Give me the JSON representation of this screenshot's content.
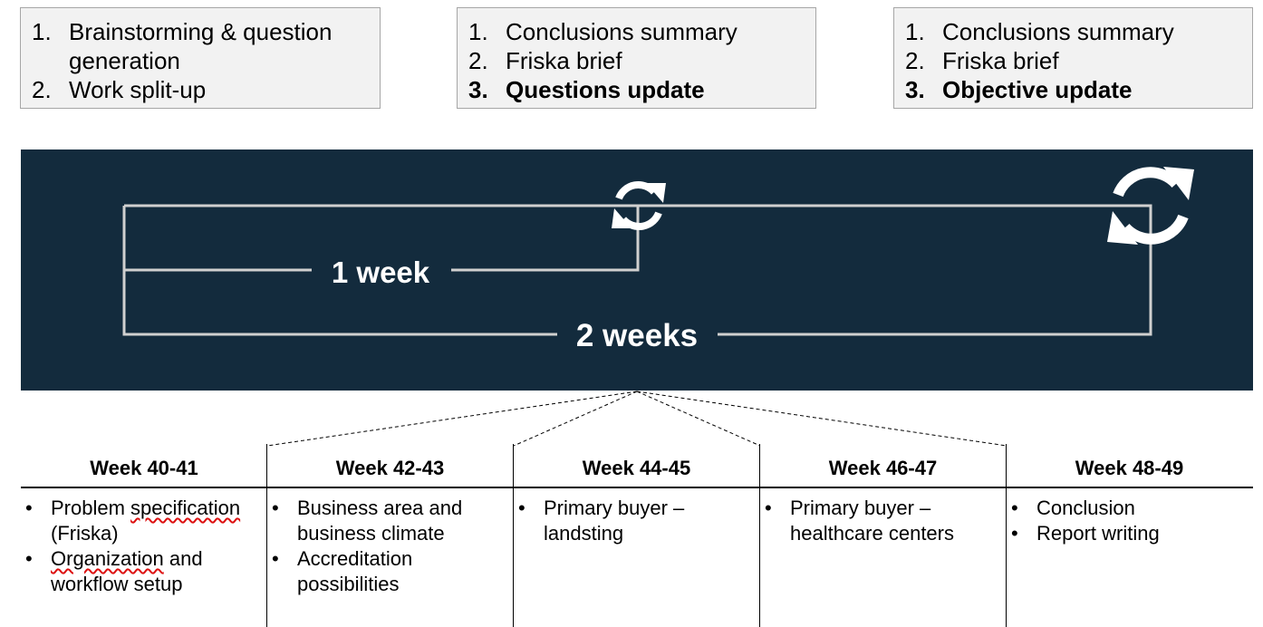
{
  "top_boxes": [
    {
      "items": [
        {
          "num": "1.",
          "text": "Brainstorming & question generation",
          "bold": false
        },
        {
          "num": "2.",
          "text": "Work split-up",
          "bold": false
        }
      ]
    },
    {
      "items": [
        {
          "num": "1.",
          "text": "Conclusions summary",
          "bold": false
        },
        {
          "num": "2.",
          "text": "Friska brief",
          "bold": false
        },
        {
          "num": "3.",
          "text": "Questions update",
          "bold": true
        }
      ]
    },
    {
      "items": [
        {
          "num": "1.",
          "text": "Conclusions summary",
          "bold": false
        },
        {
          "num": "2.",
          "text": "Friska brief",
          "bold": false
        },
        {
          "num": "3.",
          "text": "Objective update",
          "bold": true
        }
      ]
    }
  ],
  "banner": {
    "short_cycle_label": "1 week",
    "long_cycle_label": "2 weeks",
    "short_cycle_icon": "refresh-icon",
    "long_cycle_icon": "refresh-icon",
    "background_color": "#132b3d",
    "line_color": "#d0d0d0"
  },
  "weeks": [
    {
      "title": "Week 40-41",
      "bullets": [
        {
          "pre": "Problem ",
          "spell": "specification",
          "post": " (Friska)"
        },
        {
          "pre": "",
          "spell": "Organization",
          "post": " and workflow setup"
        }
      ]
    },
    {
      "title": "Week 42-43",
      "bullets": [
        {
          "pre": "Business area and business climate",
          "spell": "",
          "post": ""
        },
        {
          "pre": "Accreditation possibilities",
          "spell": "",
          "post": ""
        }
      ]
    },
    {
      "title": "Week 44-45",
      "bullets": [
        {
          "pre": "Primary buyer – landsting",
          "spell": "",
          "post": ""
        }
      ]
    },
    {
      "title": "Week 46-47",
      "bullets": [
        {
          "pre": "Primary buyer – healthcare centers",
          "spell": "",
          "post": ""
        }
      ]
    },
    {
      "title": "Week 48-49",
      "bullets": [
        {
          "pre": "Conclusion",
          "spell": "",
          "post": ""
        },
        {
          "pre": "Report writing",
          "spell": "",
          "post": ""
        }
      ]
    }
  ]
}
